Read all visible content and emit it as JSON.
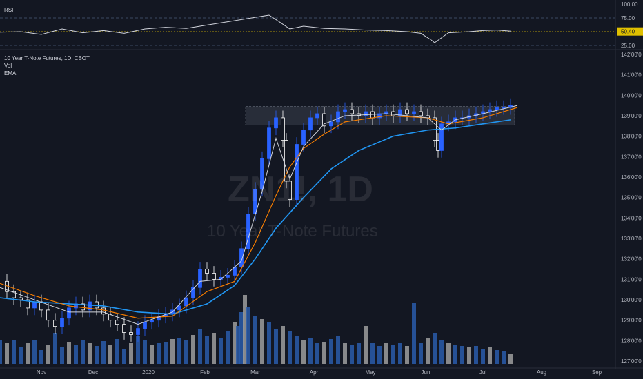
{
  "rsi_panel": {
    "label": "RSI",
    "ticks": [
      "100.00",
      "75.00",
      "25.00"
    ],
    "current_value": "50.40",
    "current_numeric": 50.4
  },
  "main_panel": {
    "title": "10 Year T-Note Futures, 1D, CBOT",
    "indicators": [
      "Vol",
      "EMA"
    ],
    "watermark_symbol": "ZN1!, 1D",
    "watermark_name": "10 Year T-Note Futures"
  },
  "colors": {
    "background": "#131722",
    "up_candle": "#2962ff",
    "down_candle": "#ffffff",
    "ema_fast": "#d1d4dc",
    "ema_mid": "#f57c00",
    "ema_slow": "#2196f3",
    "vol_up": "#2a5caa",
    "vol_down": "#9e9e9e",
    "rsi_line": "#d1d4dc",
    "rsi_mid": "#e0c000"
  },
  "chart_data": {
    "type": "candlestick",
    "x_ticks": [
      "Nov",
      "Dec",
      "2020",
      "Feb",
      "Mar",
      "Apr",
      "May",
      "Jun",
      "Jul",
      "Aug",
      "Sep"
    ],
    "y_ticks": [
      "142'00'0",
      "141'00'0",
      "140'00'0",
      "139'00'0",
      "138'00'0",
      "137'00'0",
      "136'00'0",
      "135'00'0",
      "134'00'0",
      "133'00'0",
      "132'00'0",
      "131'00'0",
      "130'00'0",
      "129'00'0",
      "128'00'0",
      "127'00'0"
    ],
    "ylim": [
      126.8,
      142.2
    ],
    "consolidation_zone": [
      138.55,
      139.45
    ],
    "close_series": [
      [
        0,
        130.9
      ],
      [
        10,
        130.4
      ],
      [
        20,
        130.1
      ],
      [
        30,
        130.0
      ],
      [
        40,
        129.6
      ],
      [
        50,
        129.9
      ],
      [
        60,
        129.5
      ],
      [
        70,
        129.0
      ],
      [
        80,
        128.7
      ],
      [
        90,
        129.1
      ],
      [
        100,
        129.6
      ],
      [
        110,
        129.8
      ],
      [
        120,
        129.5
      ],
      [
        130,
        129.9
      ],
      [
        140,
        129.6
      ],
      [
        150,
        129.3
      ],
      [
        160,
        129.0
      ],
      [
        170,
        128.8
      ],
      [
        180,
        128.4
      ],
      [
        190,
        128.3
      ],
      [
        200,
        128.6
      ],
      [
        210,
        128.9
      ],
      [
        220,
        129.0
      ],
      [
        230,
        129.2
      ],
      [
        240,
        129.3
      ],
      [
        250,
        129.5
      ],
      [
        260,
        129.7
      ],
      [
        270,
        130.1
      ],
      [
        280,
        130.6
      ],
      [
        290,
        131.5
      ],
      [
        300,
        131.3
      ],
      [
        310,
        131.0
      ],
      [
        320,
        131.1
      ],
      [
        330,
        131.2
      ],
      [
        340,
        131.6
      ],
      [
        350,
        132.5
      ],
      [
        360,
        134.2
      ],
      [
        370,
        135.4
      ],
      [
        380,
        136.9
      ],
      [
        390,
        138.4
      ],
      [
        400,
        138.9
      ],
      [
        410,
        137.8
      ],
      [
        415,
        135.8
      ],
      [
        420,
        134.9
      ],
      [
        430,
        137.6
      ],
      [
        440,
        138.3
      ],
      [
        450,
        138.9
      ],
      [
        460,
        139.1
      ],
      [
        470,
        138.5
      ],
      [
        480,
        138.7
      ],
      [
        490,
        139.2
      ],
      [
        500,
        139.3
      ],
      [
        510,
        139.1
      ],
      [
        520,
        139.0
      ],
      [
        530,
        139.2
      ],
      [
        540,
        138.9
      ],
      [
        550,
        139.1
      ],
      [
        560,
        139.2
      ],
      [
        570,
        139.0
      ],
      [
        580,
        139.3
      ],
      [
        590,
        139.1
      ],
      [
        600,
        139.2
      ],
      [
        610,
        139.0
      ],
      [
        620,
        138.9
      ],
      [
        630,
        137.8
      ],
      [
        635,
        137.3
      ],
      [
        640,
        138.6
      ],
      [
        650,
        138.7
      ],
      [
        660,
        138.9
      ],
      [
        670,
        138.9
      ],
      [
        680,
        139.0
      ],
      [
        690,
        139.1
      ],
      [
        700,
        139.2
      ],
      [
        710,
        139.3
      ],
      [
        720,
        139.4
      ],
      [
        730,
        139.4
      ],
      [
        740,
        139.5
      ]
    ],
    "ema_fast": [
      [
        0,
        130.6
      ],
      [
        50,
        130.0
      ],
      [
        100,
        129.4
      ],
      [
        150,
        129.4
      ],
      [
        200,
        128.8
      ],
      [
        250,
        129.4
      ],
      [
        290,
        130.9
      ],
      [
        320,
        131.0
      ],
      [
        350,
        131.9
      ],
      [
        380,
        135.3
      ],
      [
        400,
        137.9
      ],
      [
        420,
        135.9
      ],
      [
        440,
        137.5
      ],
      [
        470,
        138.6
      ],
      [
        500,
        139.0
      ],
      [
        560,
        139.1
      ],
      [
        620,
        138.9
      ],
      [
        640,
        138.3
      ],
      [
        660,
        138.8
      ],
      [
        700,
        139.1
      ],
      [
        750,
        139.5
      ]
    ],
    "ema_mid": [
      [
        0,
        130.8
      ],
      [
        50,
        130.2
      ],
      [
        100,
        129.7
      ],
      [
        150,
        129.5
      ],
      [
        200,
        129.1
      ],
      [
        250,
        129.2
      ],
      [
        300,
        130.4
      ],
      [
        340,
        130.9
      ],
      [
        370,
        132.8
      ],
      [
        400,
        135.1
      ],
      [
        420,
        136.5
      ],
      [
        440,
        137.4
      ],
      [
        470,
        138.1
      ],
      [
        500,
        138.7
      ],
      [
        560,
        139.0
      ],
      [
        620,
        138.9
      ],
      [
        650,
        138.6
      ],
      [
        700,
        138.9
      ],
      [
        750,
        139.4
      ]
    ],
    "ema_slow": [
      [
        0,
        130.1
      ],
      [
        50,
        129.9
      ],
      [
        100,
        129.8
      ],
      [
        150,
        129.7
      ],
      [
        200,
        129.4
      ],
      [
        250,
        129.3
      ],
      [
        300,
        129.8
      ],
      [
        340,
        130.7
      ],
      [
        370,
        132.0
      ],
      [
        400,
        133.5
      ],
      [
        440,
        135.0
      ],
      [
        480,
        136.4
      ],
      [
        520,
        137.3
      ],
      [
        570,
        138.0
      ],
      [
        620,
        138.3
      ],
      [
        660,
        138.4
      ],
      [
        700,
        138.6
      ],
      [
        740,
        138.8
      ]
    ],
    "volume": [
      [
        0,
        0.35
      ],
      [
        10,
        0.3
      ],
      [
        20,
        0.35
      ],
      [
        30,
        0.25
      ],
      [
        40,
        0.3
      ],
      [
        50,
        0.35
      ],
      [
        60,
        0.2
      ],
      [
        70,
        0.28
      ],
      [
        80,
        0.45
      ],
      [
        90,
        0.25
      ],
      [
        100,
        0.32
      ],
      [
        110,
        0.28
      ],
      [
        120,
        0.35
      ],
      [
        130,
        0.3
      ],
      [
        140,
        0.26
      ],
      [
        150,
        0.33
      ],
      [
        160,
        0.28
      ],
      [
        170,
        0.36
      ],
      [
        180,
        0.22
      ],
      [
        190,
        0.3
      ],
      [
        200,
        0.4
      ],
      [
        210,
        0.35
      ],
      [
        220,
        0.28
      ],
      [
        230,
        0.3
      ],
      [
        240,
        0.32
      ],
      [
        250,
        0.36
      ],
      [
        260,
        0.38
      ],
      [
        270,
        0.34
      ],
      [
        280,
        0.42
      ],
      [
        290,
        0.5
      ],
      [
        300,
        0.4
      ],
      [
        310,
        0.45
      ],
      [
        320,
        0.38
      ],
      [
        330,
        0.48
      ],
      [
        340,
        0.6
      ],
      [
        345,
        0.55
      ],
      [
        350,
        0.75
      ],
      [
        355,
        1.0
      ],
      [
        360,
        0.82
      ],
      [
        370,
        0.7
      ],
      [
        380,
        0.65
      ],
      [
        390,
        0.6
      ],
      [
        400,
        0.5
      ],
      [
        410,
        0.55
      ],
      [
        420,
        0.48
      ],
      [
        430,
        0.4
      ],
      [
        440,
        0.35
      ],
      [
        450,
        0.38
      ],
      [
        460,
        0.3
      ],
      [
        470,
        0.32
      ],
      [
        480,
        0.36
      ],
      [
        490,
        0.4
      ],
      [
        500,
        0.3
      ],
      [
        510,
        0.28
      ],
      [
        520,
        0.3
      ],
      [
        530,
        0.55
      ],
      [
        540,
        0.3
      ],
      [
        550,
        0.26
      ],
      [
        560,
        0.3
      ],
      [
        570,
        0.28
      ],
      [
        580,
        0.3
      ],
      [
        590,
        0.26
      ],
      [
        600,
        0.88
      ],
      [
        610,
        0.3
      ],
      [
        620,
        0.38
      ],
      [
        630,
        0.45
      ],
      [
        640,
        0.35
      ],
      [
        650,
        0.3
      ],
      [
        660,
        0.28
      ],
      [
        670,
        0.26
      ],
      [
        680,
        0.24
      ],
      [
        690,
        0.26
      ],
      [
        700,
        0.22
      ],
      [
        710,
        0.24
      ],
      [
        720,
        0.2
      ],
      [
        730,
        0.18
      ],
      [
        740,
        0.14
      ]
    ],
    "rsi": [
      [
        0,
        49
      ],
      [
        30,
        50
      ],
      [
        60,
        45
      ],
      [
        90,
        55
      ],
      [
        120,
        48
      ],
      [
        150,
        52
      ],
      [
        180,
        47
      ],
      [
        210,
        55
      ],
      [
        240,
        58
      ],
      [
        270,
        56
      ],
      [
        300,
        62
      ],
      [
        330,
        68
      ],
      [
        360,
        74
      ],
      [
        390,
        80
      ],
      [
        400,
        72
      ],
      [
        420,
        55
      ],
      [
        440,
        60
      ],
      [
        470,
        56
      ],
      [
        500,
        55
      ],
      [
        530,
        53
      ],
      [
        560,
        52
      ],
      [
        590,
        50
      ],
      [
        610,
        47
      ],
      [
        625,
        35
      ],
      [
        630,
        30
      ],
      [
        650,
        48
      ],
      [
        680,
        50
      ],
      [
        700,
        52
      ],
      [
        720,
        53
      ],
      [
        740,
        51
      ]
    ],
    "rsi_ylim": [
      20,
      105
    ]
  }
}
